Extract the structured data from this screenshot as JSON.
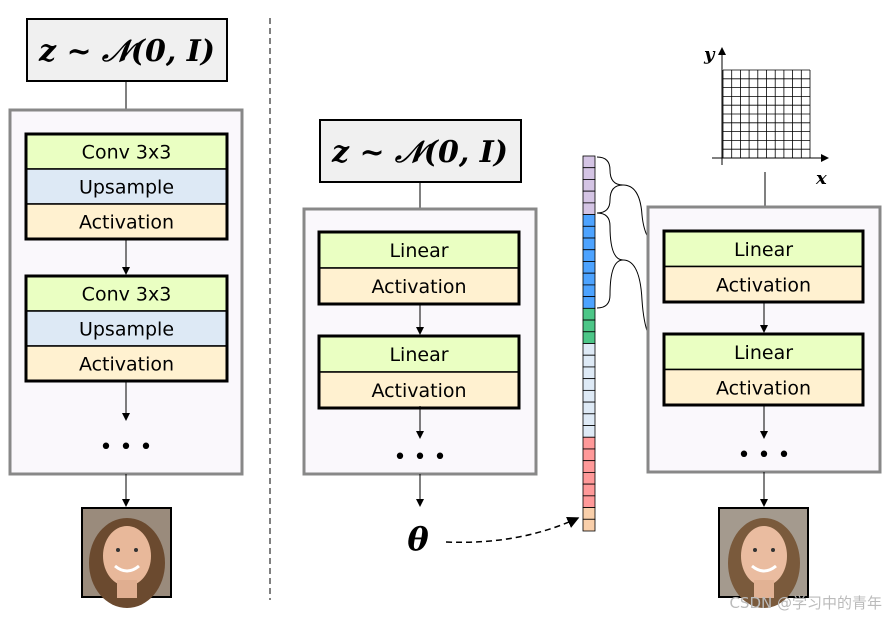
{
  "formula": "z ~ 𝒩(0, I)",
  "left": {
    "blocks": [
      [
        "Conv 3x3",
        "Upsample",
        "Activation"
      ],
      [
        "Conv 3x3",
        "Upsample",
        "Activation"
      ]
    ],
    "dots": "• • •"
  },
  "middle": {
    "blocks": [
      [
        "Linear",
        "Activation"
      ],
      [
        "Linear",
        "Activation"
      ]
    ],
    "dots": "• • •",
    "output": "θ"
  },
  "right": {
    "blocks": [
      [
        "Linear",
        "Activation"
      ],
      [
        "Linear",
        "Activation"
      ]
    ],
    "dots": "• • •",
    "axis_x": "x",
    "axis_y": "y"
  },
  "param_vector": {
    "segments": [
      {
        "color": "#d4c4e4",
        "count": 5
      },
      {
        "color": "#4da3ff",
        "count": 8
      },
      {
        "color": "#4cc687",
        "count": 3
      },
      {
        "color": "#deeaf6",
        "count": 8
      },
      {
        "color": "#ff9999",
        "count": 6
      },
      {
        "color": "#f9cfaa",
        "count": 2
      }
    ]
  },
  "colors": {
    "conv": "#eaffc2",
    "upsample": "#dde9f5",
    "activation": "#fff1d0",
    "linear": "#eaffc2",
    "network_bg": "#faf8fc",
    "formula_bg": "#f0f0f0"
  },
  "watermark": "CSDN @学习中的青年"
}
